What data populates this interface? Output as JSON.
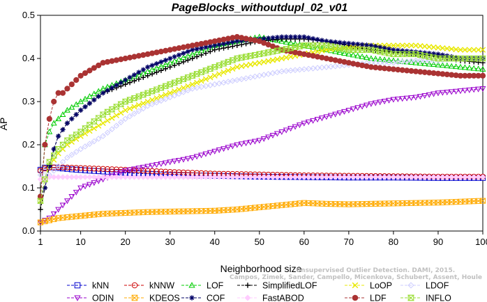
{
  "chart_data": {
    "type": "line",
    "title": "PageBlocks_withoutdupl_02_v01",
    "xlabel": "Neighborhood size",
    "ylabel": "AP",
    "xlim": [
      1,
      100
    ],
    "ylim": [
      0,
      0.5
    ],
    "xticks": [
      1,
      10,
      20,
      30,
      40,
      50,
      60,
      70,
      80,
      90,
      100
    ],
    "yticks": [
      0.0,
      0.1,
      0.2,
      0.3,
      0.4,
      0.5
    ],
    "grid": false,
    "legend_position": "bottom",
    "watermark": "Campos, Zimek, Sander, Campello, Micenkova, Schubert, Assent, Houle",
    "watermark_top": "Unsupervised Outlier Detection. DAMI, 2015.",
    "series": [
      {
        "name": "kNN",
        "color": "#0000cc",
        "marker": "square",
        "x": [
          1,
          2,
          3,
          5,
          8,
          12,
          20,
          30,
          40,
          50,
          60,
          70,
          80,
          90,
          100
        ],
        "y": [
          0.142,
          0.147,
          0.148,
          0.146,
          0.143,
          0.14,
          0.135,
          0.13,
          0.128,
          0.126,
          0.125,
          0.124,
          0.124,
          0.123,
          0.123
        ]
      },
      {
        "name": "kNNW",
        "color": "#cc0000",
        "marker": "circle",
        "x": [
          1,
          2,
          3,
          5,
          10,
          20,
          30,
          40,
          50,
          60,
          70,
          80,
          90,
          100
        ],
        "y": [
          0.14,
          0.145,
          0.147,
          0.148,
          0.146,
          0.142,
          0.137,
          0.133,
          0.131,
          0.129,
          0.128,
          0.127,
          0.126,
          0.126
        ]
      },
      {
        "name": "LOF",
        "color": "#00cc00",
        "marker": "triangle-up",
        "x": [
          1,
          2,
          3,
          4,
          5,
          7,
          10,
          15,
          20,
          25,
          30,
          35,
          40,
          45,
          50,
          55,
          60,
          65,
          70,
          75,
          80,
          85,
          90,
          95,
          100
        ],
        "y": [
          0.08,
          0.2,
          0.23,
          0.25,
          0.26,
          0.28,
          0.3,
          0.33,
          0.35,
          0.37,
          0.39,
          0.41,
          0.43,
          0.44,
          0.45,
          0.44,
          0.43,
          0.42,
          0.41,
          0.4,
          0.395,
          0.39,
          0.385,
          0.38,
          0.375
        ]
      },
      {
        "name": "SimplifiedLOF",
        "color": "#000000",
        "marker": "plus",
        "x": [
          1,
          2,
          3,
          4,
          5,
          7,
          10,
          15,
          20,
          25,
          30,
          35,
          40,
          45,
          50,
          55,
          60,
          65,
          70,
          75,
          80,
          85,
          90,
          95,
          100
        ],
        "y": [
          0.05,
          0.1,
          0.15,
          0.19,
          0.22,
          0.25,
          0.28,
          0.32,
          0.34,
          0.36,
          0.38,
          0.4,
          0.42,
          0.43,
          0.44,
          0.445,
          0.445,
          0.44,
          0.43,
          0.42,
          0.415,
          0.41,
          0.405,
          0.395,
          0.39
        ]
      },
      {
        "name": "LoOP",
        "color": "#e8e800",
        "marker": "x",
        "x": [
          1,
          2,
          3,
          5,
          7,
          10,
          15,
          20,
          25,
          30,
          35,
          40,
          45,
          50,
          55,
          60,
          65,
          70,
          75,
          80,
          85,
          90,
          95,
          100
        ],
        "y": [
          0.07,
          0.12,
          0.15,
          0.18,
          0.2,
          0.22,
          0.25,
          0.28,
          0.3,
          0.32,
          0.34,
          0.36,
          0.38,
          0.39,
          0.4,
          0.41,
          0.42,
          0.425,
          0.43,
          0.43,
          0.43,
          0.425,
          0.42,
          0.42
        ]
      },
      {
        "name": "LDOF",
        "color": "#ccccff",
        "marker": "diamond",
        "x": [
          1,
          3,
          5,
          7,
          10,
          15,
          20,
          25,
          30,
          35,
          40,
          45,
          50,
          55,
          60,
          65,
          70,
          75,
          80,
          85,
          90,
          95,
          100
        ],
        "y": [
          0.13,
          0.13,
          0.15,
          0.17,
          0.19,
          0.22,
          0.26,
          0.29,
          0.31,
          0.33,
          0.34,
          0.35,
          0.36,
          0.37,
          0.375,
          0.38,
          0.385,
          0.39,
          0.39,
          0.395,
          0.395,
          0.4,
          0.4
        ]
      },
      {
        "name": "ODIN",
        "color": "#9900cc",
        "marker": "triangle-down",
        "x": [
          1,
          3,
          5,
          8,
          10,
          15,
          20,
          25,
          30,
          35,
          40,
          45,
          50,
          55,
          60,
          65,
          70,
          75,
          80,
          85,
          90,
          95,
          100
        ],
        "y": [
          0.02,
          0.03,
          0.05,
          0.08,
          0.1,
          0.12,
          0.14,
          0.15,
          0.16,
          0.17,
          0.185,
          0.2,
          0.21,
          0.23,
          0.25,
          0.265,
          0.28,
          0.295,
          0.305,
          0.31,
          0.32,
          0.325,
          0.33
        ]
      },
      {
        "name": "KDEOS",
        "color": "#ffaa00",
        "marker": "square-x",
        "x": [
          1,
          3,
          5,
          10,
          15,
          20,
          25,
          30,
          35,
          40,
          45,
          50,
          55,
          60,
          65,
          70,
          75,
          80,
          85,
          90,
          95,
          100
        ],
        "y": [
          0.02,
          0.025,
          0.03,
          0.035,
          0.04,
          0.042,
          0.044,
          0.045,
          0.046,
          0.047,
          0.05,
          0.055,
          0.06,
          0.065,
          0.063,
          0.062,
          0.063,
          0.064,
          0.065,
          0.066,
          0.068,
          0.07
        ]
      },
      {
        "name": "COF",
        "color": "#000066",
        "marker": "asterisk",
        "x": [
          1,
          2,
          3,
          4,
          5,
          7,
          10,
          15,
          20,
          25,
          30,
          35,
          40,
          45,
          50,
          55,
          60,
          65,
          70,
          75,
          80,
          85,
          90,
          95,
          100
        ],
        "y": [
          0.08,
          0.1,
          0.15,
          0.19,
          0.22,
          0.25,
          0.28,
          0.32,
          0.35,
          0.38,
          0.4,
          0.42,
          0.43,
          0.44,
          0.445,
          0.45,
          0.45,
          0.44,
          0.435,
          0.43,
          0.42,
          0.415,
          0.41,
          0.4,
          0.4
        ]
      },
      {
        "name": "FastABOD",
        "color": "#ffccff",
        "marker": "diamond-filled",
        "x": [
          1,
          2,
          3,
          5,
          10,
          15,
          20,
          30,
          40,
          50,
          60,
          70,
          80,
          90,
          100
        ],
        "y": [
          0.12,
          0.12,
          0.125,
          0.125,
          0.125,
          0.125,
          0.125,
          0.125,
          0.125,
          0.125,
          0.125,
          0.125,
          0.125,
          0.125,
          0.125
        ]
      },
      {
        "name": "LDF",
        "color": "#aa3333",
        "marker": "circle-filled",
        "x": [
          1,
          2,
          3,
          4,
          5,
          6,
          7,
          10,
          15,
          20,
          25,
          30,
          35,
          40,
          45,
          50,
          55,
          60,
          65,
          70,
          75,
          80,
          85,
          90,
          95,
          100
        ],
        "y": [
          0.08,
          0.2,
          0.26,
          0.3,
          0.32,
          0.32,
          0.33,
          0.36,
          0.39,
          0.4,
          0.41,
          0.42,
          0.43,
          0.44,
          0.45,
          0.44,
          0.42,
          0.41,
          0.4,
          0.39,
          0.38,
          0.375,
          0.37,
          0.365,
          0.36,
          0.36
        ]
      },
      {
        "name": "INFLO",
        "color": "#99dd33",
        "marker": "hourglass",
        "x": [
          1,
          2,
          3,
          5,
          7,
          10,
          15,
          20,
          25,
          30,
          35,
          40,
          45,
          50,
          55,
          60,
          65,
          70,
          75,
          80,
          85,
          90,
          95,
          100
        ],
        "y": [
          0.07,
          0.12,
          0.16,
          0.19,
          0.21,
          0.23,
          0.27,
          0.3,
          0.32,
          0.34,
          0.36,
          0.38,
          0.4,
          0.41,
          0.42,
          0.43,
          0.43,
          0.42,
          0.42,
          0.41,
          0.41,
          0.4,
          0.4,
          0.4
        ]
      }
    ]
  },
  "legend": {
    "rows": [
      [
        "kNN",
        "kNNW",
        "LOF",
        "SimplifiedLOF",
        "LoOP",
        "LDOF"
      ],
      [
        "ODIN",
        "KDEOS",
        "COF",
        "FastABOD",
        "LDF",
        "INFLO"
      ]
    ]
  }
}
